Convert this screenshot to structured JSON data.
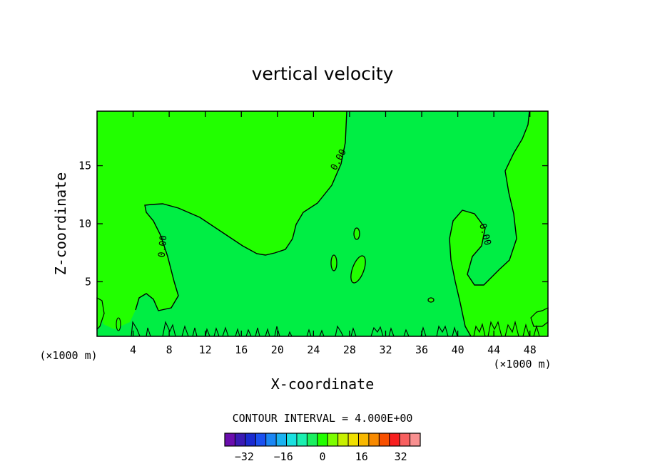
{
  "chart_data": {
    "type": "contour",
    "title": "vertical velocity",
    "xlabel": "X-coordinate",
    "ylabel": "Z-coordinate",
    "x_unit_left": "(×1000 m)",
    "x_unit_right": "(×1000 m)",
    "xlim": [
      0,
      50
    ],
    "ylim": [
      0.3,
      19.7
    ],
    "xticks": [
      "4",
      "8",
      "12",
      "16",
      "20",
      "24",
      "28",
      "32",
      "36",
      "40",
      "44",
      "48"
    ],
    "xtick_values": [
      4,
      8,
      12,
      16,
      20,
      24,
      28,
      32,
      36,
      40,
      44,
      48
    ],
    "yticks": [
      "5",
      "10",
      "15"
    ],
    "ytick_values": [
      5,
      10,
      15
    ],
    "contour_label": "0.00",
    "contour_interval_text": "CONTOUR INTERVAL = 4.000E+00",
    "colorbar": {
      "tick_labels": [
        "−32",
        "−16",
        "0",
        "16",
        "32"
      ],
      "tick_values": [
        -32,
        -16,
        0,
        16,
        32
      ],
      "min": -40,
      "max": 40,
      "colors": [
        "#6a0dad",
        "#3a1ab4",
        "#1a2ad0",
        "#1a50f0",
        "#1a86f4",
        "#1ab2f0",
        "#1ae0e0",
        "#1af0b0",
        "#1af060",
        "#22ff00",
        "#7cff00",
        "#c8f000",
        "#f0e000",
        "#f8b800",
        "#f88a00",
        "#f85000",
        "#f82020",
        "#f86060",
        "#f89090"
      ]
    },
    "regions": {
      "positive_color": "#22ff00",
      "negative_color": "#00ee44"
    }
  }
}
